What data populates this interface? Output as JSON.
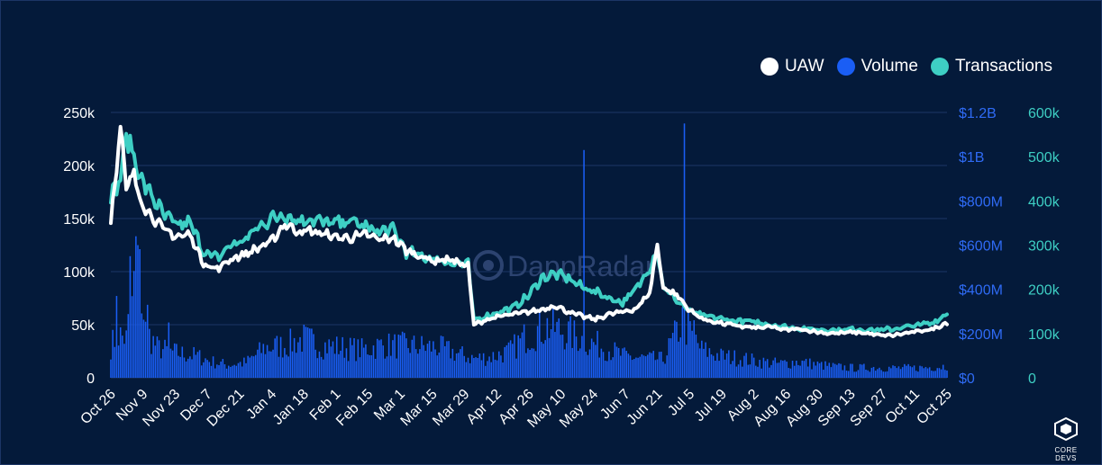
{
  "legend": [
    {
      "label": "UAW",
      "color": "#ffffff"
    },
    {
      "label": "Volume",
      "color": "#1a5ef5"
    },
    {
      "label": "Transactions",
      "color": "#3ecfc4"
    }
  ],
  "watermark": "DappRadar",
  "logo": {
    "label": "CORE DEVS"
  },
  "chart_data": {
    "type": "line",
    "title": "",
    "x_tick_labels": [
      "Oct 26",
      "Nov 9",
      "Nov 23",
      "Dec 7",
      "Dec 21",
      "Jan 4",
      "Jan 18",
      "Feb 1",
      "Feb 15",
      "Mar 1",
      "Mar 15",
      "Mar 29",
      "Apr 12",
      "Apr 26",
      "May 10",
      "May 24",
      "Jun 7",
      "Jun 21",
      "Jul 5",
      "Jul 19",
      "Aug 2",
      "Aug 16",
      "Aug 30",
      "Sep 13",
      "Sep 27",
      "Oct 11",
      "Oct 25"
    ],
    "axes": {
      "uaw": {
        "side": "left",
        "ylim": [
          0,
          250000
        ],
        "ticks": [
          "0",
          "50k",
          "100k",
          "150k",
          "200k",
          "250k"
        ]
      },
      "volume": {
        "side": "right",
        "ylim": [
          0,
          1200000000
        ],
        "ticks": [
          "$0",
          "$200M",
          "$400M",
          "$600M",
          "$800M",
          "$1B",
          "$1.2B"
        ]
      },
      "transactions": {
        "side": "right",
        "ylim": [
          0,
          600000
        ],
        "ticks": [
          "0",
          "100k",
          "200k",
          "300k",
          "400k",
          "500k",
          "600k"
        ]
      }
    },
    "grid": true,
    "legend_position": "top-right",
    "series": [
      {
        "name": "UAW",
        "type": "line",
        "axis": "uaw",
        "color": "#ffffff",
        "anchors": [
          [
            0,
            148000
          ],
          [
            5,
            235000
          ],
          [
            8,
            178000
          ],
          [
            12,
            192000
          ],
          [
            16,
            165000
          ],
          [
            20,
            155000
          ],
          [
            27,
            140000
          ],
          [
            34,
            133000
          ],
          [
            41,
            135000
          ],
          [
            48,
            108000
          ],
          [
            55,
            102000
          ],
          [
            62,
            112000
          ],
          [
            69,
            116000
          ],
          [
            76,
            122000
          ],
          [
            83,
            128000
          ],
          [
            90,
            145000
          ],
          [
            97,
            138000
          ],
          [
            104,
            138000
          ],
          [
            111,
            135000
          ],
          [
            118,
            132000
          ],
          [
            125,
            132000
          ],
          [
            132,
            135000
          ],
          [
            139,
            130000
          ],
          [
            146,
            132000
          ],
          [
            153,
            120000
          ],
          [
            160,
            115000
          ],
          [
            167,
            110000
          ],
          [
            174,
            112000
          ],
          [
            181,
            108000
          ],
          [
            185,
            105000
          ],
          [
            188,
            50000
          ],
          [
            195,
            55000
          ],
          [
            202,
            58000
          ],
          [
            209,
            60000
          ],
          [
            216,
            62000
          ],
          [
            223,
            64000
          ],
          [
            230,
            68000
          ],
          [
            237,
            62000
          ],
          [
            244,
            58000
          ],
          [
            251,
            55000
          ],
          [
            258,
            60000
          ],
          [
            265,
            62000
          ],
          [
            272,
            65000
          ],
          [
            279,
            80000
          ],
          [
            283,
            125000
          ],
          [
            286,
            85000
          ],
          [
            293,
            78000
          ],
          [
            300,
            63000
          ],
          [
            307,
            55000
          ],
          [
            314,
            52000
          ],
          [
            321,
            50000
          ],
          [
            328,
            48000
          ],
          [
            335,
            47000
          ],
          [
            342,
            48000
          ],
          [
            349,
            45000
          ],
          [
            356,
            46000
          ],
          [
            363,
            44000
          ],
          [
            370,
            42000
          ],
          [
            377,
            42000
          ],
          [
            384,
            43000
          ],
          [
            391,
            42000
          ],
          [
            398,
            40000
          ],
          [
            405,
            40000
          ],
          [
            412,
            42000
          ],
          [
            419,
            44000
          ],
          [
            426,
            46000
          ],
          [
            433,
            52000
          ]
        ]
      },
      {
        "name": "Transactions",
        "type": "line",
        "axis": "transactions",
        "color": "#3ecfc4",
        "anchors": [
          [
            0,
            410000
          ],
          [
            5,
            450000
          ],
          [
            8,
            550000
          ],
          [
            12,
            500000
          ],
          [
            16,
            445000
          ],
          [
            20,
            420000
          ],
          [
            27,
            370000
          ],
          [
            34,
            345000
          ],
          [
            41,
            350000
          ],
          [
            48,
            285000
          ],
          [
            55,
            270000
          ],
          [
            62,
            300000
          ],
          [
            69,
            310000
          ],
          [
            76,
            340000
          ],
          [
            83,
            360000
          ],
          [
            90,
            370000
          ],
          [
            97,
            355000
          ],
          [
            104,
            360000
          ],
          [
            111,
            350000
          ],
          [
            118,
            350000
          ],
          [
            125,
            355000
          ],
          [
            132,
            340000
          ],
          [
            139,
            330000
          ],
          [
            146,
            335000
          ],
          [
            153,
            285000
          ],
          [
            160,
            275000
          ],
          [
            167,
            270000
          ],
          [
            174,
            262000
          ],
          [
            181,
            258000
          ],
          [
            185,
            255000
          ],
          [
            188,
            130000
          ],
          [
            195,
            140000
          ],
          [
            202,
            150000
          ],
          [
            209,
            160000
          ],
          [
            216,
            185000
          ],
          [
            223,
            225000
          ],
          [
            230,
            235000
          ],
          [
            237,
            225000
          ],
          [
            244,
            205000
          ],
          [
            251,
            195000
          ],
          [
            258,
            180000
          ],
          [
            265,
            170000
          ],
          [
            272,
            200000
          ],
          [
            279,
            250000
          ],
          [
            283,
            290000
          ],
          [
            286,
            205000
          ],
          [
            293,
            175000
          ],
          [
            300,
            150000
          ],
          [
            307,
            140000
          ],
          [
            314,
            135000
          ],
          [
            321,
            130000
          ],
          [
            328,
            128000
          ],
          [
            335,
            125000
          ],
          [
            342,
            120000
          ],
          [
            349,
            115000
          ],
          [
            356,
            112000
          ],
          [
            363,
            110000
          ],
          [
            370,
            108000
          ],
          [
            377,
            108000
          ],
          [
            384,
            110000
          ],
          [
            391,
            108000
          ],
          [
            398,
            108000
          ],
          [
            405,
            110000
          ],
          [
            412,
            115000
          ],
          [
            419,
            120000
          ],
          [
            426,
            125000
          ],
          [
            433,
            145000
          ]
        ]
      },
      {
        "name": "Volume",
        "type": "bar",
        "axis": "volume",
        "color": "#1a5ef5",
        "anchors": [
          [
            0,
            150000000
          ],
          [
            4,
            200000000
          ],
          [
            8,
            180000000
          ],
          [
            14,
            550000000
          ],
          [
            18,
            220000000
          ],
          [
            24,
            140000000
          ],
          [
            31,
            120000000
          ],
          [
            38,
            110000000
          ],
          [
            45,
            100000000
          ],
          [
            52,
            75000000
          ],
          [
            60,
            60000000
          ],
          [
            70,
            70000000
          ],
          [
            80,
            140000000
          ],
          [
            90,
            150000000
          ],
          [
            100,
            180000000
          ],
          [
            110,
            150000000
          ],
          [
            120,
            140000000
          ],
          [
            130,
            130000000
          ],
          [
            140,
            150000000
          ],
          [
            150,
            150000000
          ],
          [
            160,
            145000000
          ],
          [
            170,
            140000000
          ],
          [
            180,
            110000000
          ],
          [
            188,
            90000000
          ],
          [
            196,
            95000000
          ],
          [
            206,
            120000000
          ],
          [
            216,
            200000000
          ],
          [
            226,
            240000000
          ],
          [
            236,
            210000000
          ],
          [
            246,
            170000000
          ],
          [
            256,
            140000000
          ],
          [
            266,
            100000000
          ],
          [
            276,
            90000000
          ],
          [
            286,
            85000000
          ],
          [
            296,
            260000000
          ],
          [
            306,
            130000000
          ],
          [
            316,
            100000000
          ],
          [
            326,
            90000000
          ],
          [
            336,
            75000000
          ],
          [
            346,
            65000000
          ],
          [
            356,
            75000000
          ],
          [
            366,
            60000000
          ],
          [
            376,
            50000000
          ],
          [
            386,
            45000000
          ],
          [
            396,
            48000000
          ],
          [
            406,
            45000000
          ],
          [
            416,
            45000000
          ],
          [
            426,
            50000000
          ],
          [
            433,
            55000000
          ]
        ],
        "spikes": [
          [
            3,
            370000000
          ],
          [
            10,
            550000000
          ],
          [
            13,
            640000000
          ],
          [
            19,
            330000000
          ],
          [
            30,
            250000000
          ],
          [
            245,
            1030000000
          ],
          [
            297,
            1150000000
          ],
          [
            302,
            260000000
          ]
        ]
      }
    ]
  }
}
